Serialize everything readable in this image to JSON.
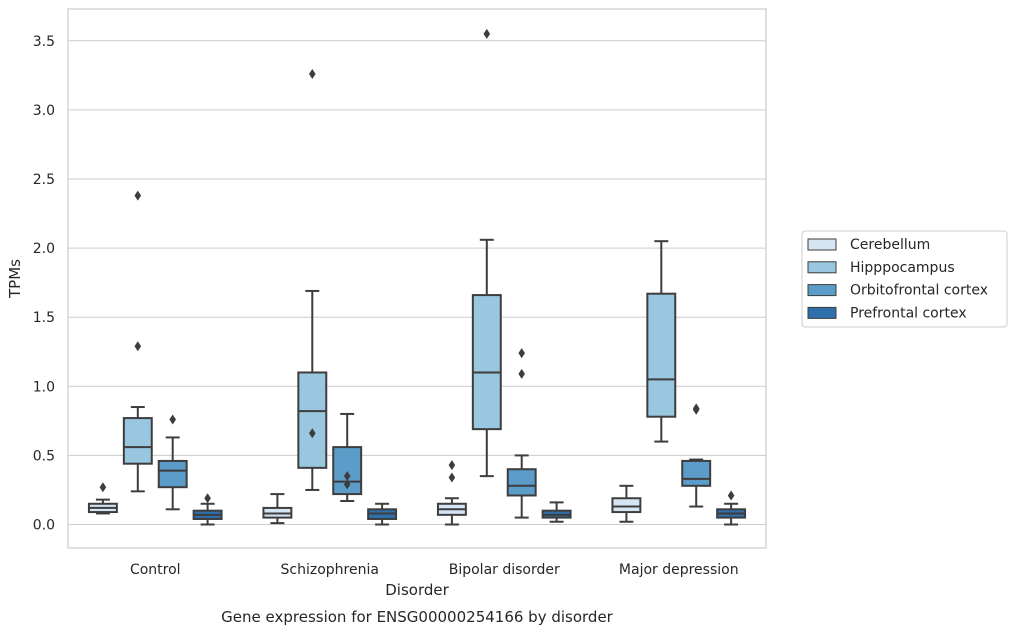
{
  "chart_data": {
    "type": "box",
    "xlabel": "Disorder",
    "ylabel": "TPMs",
    "caption": "Gene expression for ENSG00000254166 by disorder",
    "ylim": [
      -0.17,
      3.73
    ],
    "yticks": [
      "0.0",
      "0.5",
      "1.0",
      "1.5",
      "2.0",
      "2.5",
      "3.0",
      "3.5"
    ],
    "grid": "horizontal",
    "legend_position": "right",
    "categories": [
      "Control",
      "Schizophrenia",
      "Bipolar disorder",
      "Major depression"
    ],
    "series": [
      {
        "name": "Cerebellum",
        "color": "#d6e5f4",
        "boxes": [
          {
            "whislo": 0.08,
            "q1": 0.09,
            "med": 0.12,
            "q3": 0.15,
            "whishi": 0.18,
            "fliers": [
              0.27
            ]
          },
          {
            "whislo": 0.01,
            "q1": 0.05,
            "med": 0.08,
            "q3": 0.12,
            "whishi": 0.22,
            "fliers": []
          },
          {
            "whislo": 0.0,
            "q1": 0.07,
            "med": 0.11,
            "q3": 0.15,
            "whishi": 0.19,
            "fliers": [
              0.34,
              0.43
            ]
          },
          {
            "whislo": 0.02,
            "q1": 0.09,
            "med": 0.13,
            "q3": 0.19,
            "whishi": 0.28,
            "fliers": []
          }
        ]
      },
      {
        "name": "Hipppocampus",
        "color": "#9ac7e0",
        "boxes": [
          {
            "whislo": 0.24,
            "q1": 0.44,
            "med": 0.56,
            "q3": 0.77,
            "whishi": 0.85,
            "fliers": [
              1.29,
              2.38
            ]
          },
          {
            "whislo": 0.25,
            "q1": 0.41,
            "med": 0.82,
            "q3": 1.1,
            "whishi": 1.69,
            "fliers": [
              0.66,
              3.26
            ]
          },
          {
            "whislo": 0.35,
            "q1": 0.69,
            "med": 1.1,
            "q3": 1.66,
            "whishi": 2.06,
            "fliers": [
              3.55
            ]
          },
          {
            "whislo": 0.6,
            "q1": 0.78,
            "med": 1.05,
            "q3": 1.67,
            "whishi": 2.05,
            "fliers": []
          }
        ]
      },
      {
        "name": "Orbitofrontal cortex",
        "color": "#5b9cc8",
        "boxes": [
          {
            "whislo": 0.11,
            "q1": 0.27,
            "med": 0.39,
            "q3": 0.46,
            "whishi": 0.63,
            "fliers": [
              0.76
            ]
          },
          {
            "whislo": 0.17,
            "q1": 0.22,
            "med": 0.31,
            "q3": 0.56,
            "whishi": 0.8,
            "fliers": [
              0.29,
              0.35
            ]
          },
          {
            "whislo": 0.05,
            "q1": 0.21,
            "med": 0.28,
            "q3": 0.4,
            "whishi": 0.5,
            "fliers": [
              1.09,
              1.24
            ]
          },
          {
            "whislo": 0.13,
            "q1": 0.28,
            "med": 0.33,
            "q3": 0.46,
            "whishi": 0.47,
            "fliers": [
              0.83,
              0.84
            ]
          }
        ]
      },
      {
        "name": "Prefrontal cortex",
        "color": "#2f6fab",
        "boxes": [
          {
            "whislo": 0.0,
            "q1": 0.04,
            "med": 0.07,
            "q3": 0.1,
            "whishi": 0.15,
            "fliers": [
              0.19
            ]
          },
          {
            "whislo": 0.0,
            "q1": 0.04,
            "med": 0.08,
            "q3": 0.11,
            "whishi": 0.15,
            "fliers": []
          },
          {
            "whislo": 0.02,
            "q1": 0.05,
            "med": 0.07,
            "q3": 0.1,
            "whishi": 0.16,
            "fliers": []
          },
          {
            "whislo": 0.0,
            "q1": 0.05,
            "med": 0.08,
            "q3": 0.11,
            "whishi": 0.15,
            "fliers": [
              0.21
            ]
          }
        ]
      }
    ]
  }
}
